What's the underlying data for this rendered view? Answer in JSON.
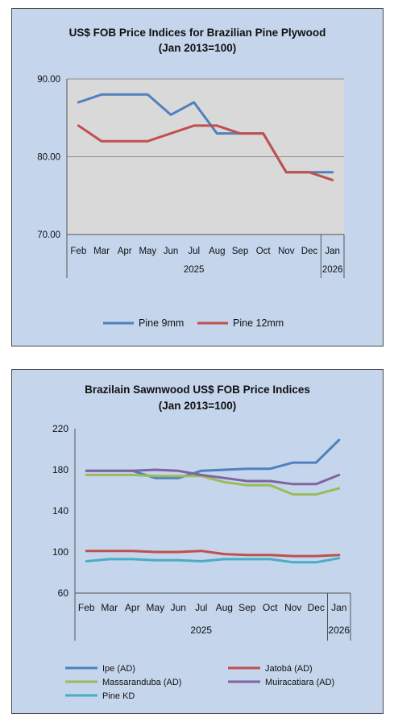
{
  "colors": {
    "panel_bg": "#c5d5ec",
    "plot_bg": "#d9d9d9",
    "grid": "#8c8c8c",
    "pine_9mm": "#4f81bd",
    "pine_12mm": "#c0504d",
    "ipe": "#4f81bd",
    "jatoba": "#c0504d",
    "massaranduba": "#9bbb59",
    "muiracatiara": "#8064a2",
    "pine_kd": "#4bacc6"
  },
  "chart_data": [
    {
      "type": "line",
      "title": "US$ FOB Price Indices for Brazilian  Pine Plywood",
      "subtitle": "(Jan 2013=100)",
      "categories": [
        "Feb",
        "Mar",
        "Apr",
        "May",
        "Jun",
        "Jul",
        "Aug",
        "Sep",
        "Oct",
        "Nov",
        "Dec",
        "Jan"
      ],
      "year_groups": [
        {
          "label": "2025",
          "from": 0,
          "to": 10
        },
        {
          "label": "2026",
          "from": 11,
          "to": 11
        }
      ],
      "ylim": [
        70,
        90
      ],
      "yticks": [
        "90.00",
        "80.00",
        "70.00"
      ],
      "ytick_values": [
        90,
        80,
        70
      ],
      "grid": true,
      "legend": "bottom",
      "series": [
        {
          "name": "Pine 9mm",
          "color": "#4f81bd",
          "values": [
            87,
            88,
            88,
            88,
            85.4,
            87,
            83,
            83,
            83,
            78,
            78,
            78
          ]
        },
        {
          "name": "Pine 12mm",
          "color": "#c0504d",
          "values": [
            84,
            82,
            82,
            82,
            83,
            84,
            84,
            83,
            83,
            78,
            78,
            77
          ]
        }
      ]
    },
    {
      "type": "line",
      "title": "Brazilain Sawnwood US$ FOB Price Indices",
      "subtitle": "(Jan 2013=100)",
      "categories": [
        "Feb",
        "Mar",
        "Apr",
        "May",
        "Jun",
        "Jul",
        "Aug",
        "Sep",
        "Oct",
        "Nov",
        "Dec",
        "Jan"
      ],
      "year_groups": [
        {
          "label": "2025",
          "from": 0,
          "to": 10
        },
        {
          "label": "2026",
          "from": 11,
          "to": 11
        }
      ],
      "ylim": [
        60,
        220
      ],
      "yticks": [
        "220",
        "180",
        "140",
        "100",
        "60"
      ],
      "ytick_values": [
        220,
        180,
        140,
        100,
        60
      ],
      "grid": false,
      "legend": "bottom",
      "series": [
        {
          "name": "Ipe (AD)",
          "color": "#4f81bd",
          "values": [
            179,
            179,
            179,
            172,
            172,
            179,
            180,
            181,
            181,
            187,
            187,
            209
          ]
        },
        {
          "name": "Jatobá (AD)",
          "color": "#c0504d",
          "values": [
            101,
            101,
            101,
            100,
            100,
            101,
            98,
            97,
            97,
            96,
            96,
            97
          ]
        },
        {
          "name": "Massaranduba (AD)",
          "color": "#9bbb59",
          "values": [
            175,
            175,
            175,
            174,
            174,
            174,
            168,
            165,
            165,
            156,
            156,
            162
          ]
        },
        {
          "name": "Muiracatiara (AD)",
          "color": "#8064a2",
          "values": [
            179,
            179,
            179,
            180,
            179,
            175,
            172,
            169,
            169,
            166,
            166,
            175
          ]
        },
        {
          "name": "Pine KD",
          "color": "#4bacc6",
          "values": [
            91,
            93,
            93,
            92,
            92,
            91,
            93,
            93,
            93,
            90,
            90,
            94
          ]
        }
      ]
    }
  ]
}
